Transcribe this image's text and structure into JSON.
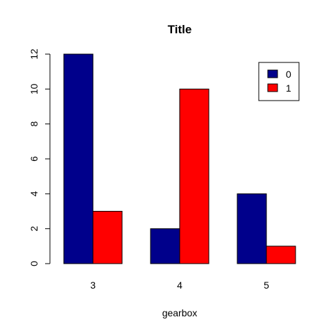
{
  "chart_data": {
    "type": "bar",
    "layout": "grouped",
    "title": "Title",
    "xlabel": "gearbox",
    "ylabel": "",
    "categories": [
      "3",
      "4",
      "5"
    ],
    "series": [
      {
        "name": "0",
        "values": [
          12,
          2,
          4
        ],
        "color": "#00008B"
      },
      {
        "name": "1",
        "values": [
          3,
          10,
          1
        ],
        "color": "#FF0000"
      }
    ],
    "ylim": [
      0,
      12
    ],
    "yticks": [
      0,
      2,
      4,
      6,
      8,
      10,
      12
    ],
    "grid": false,
    "legend_position": "top-right"
  }
}
